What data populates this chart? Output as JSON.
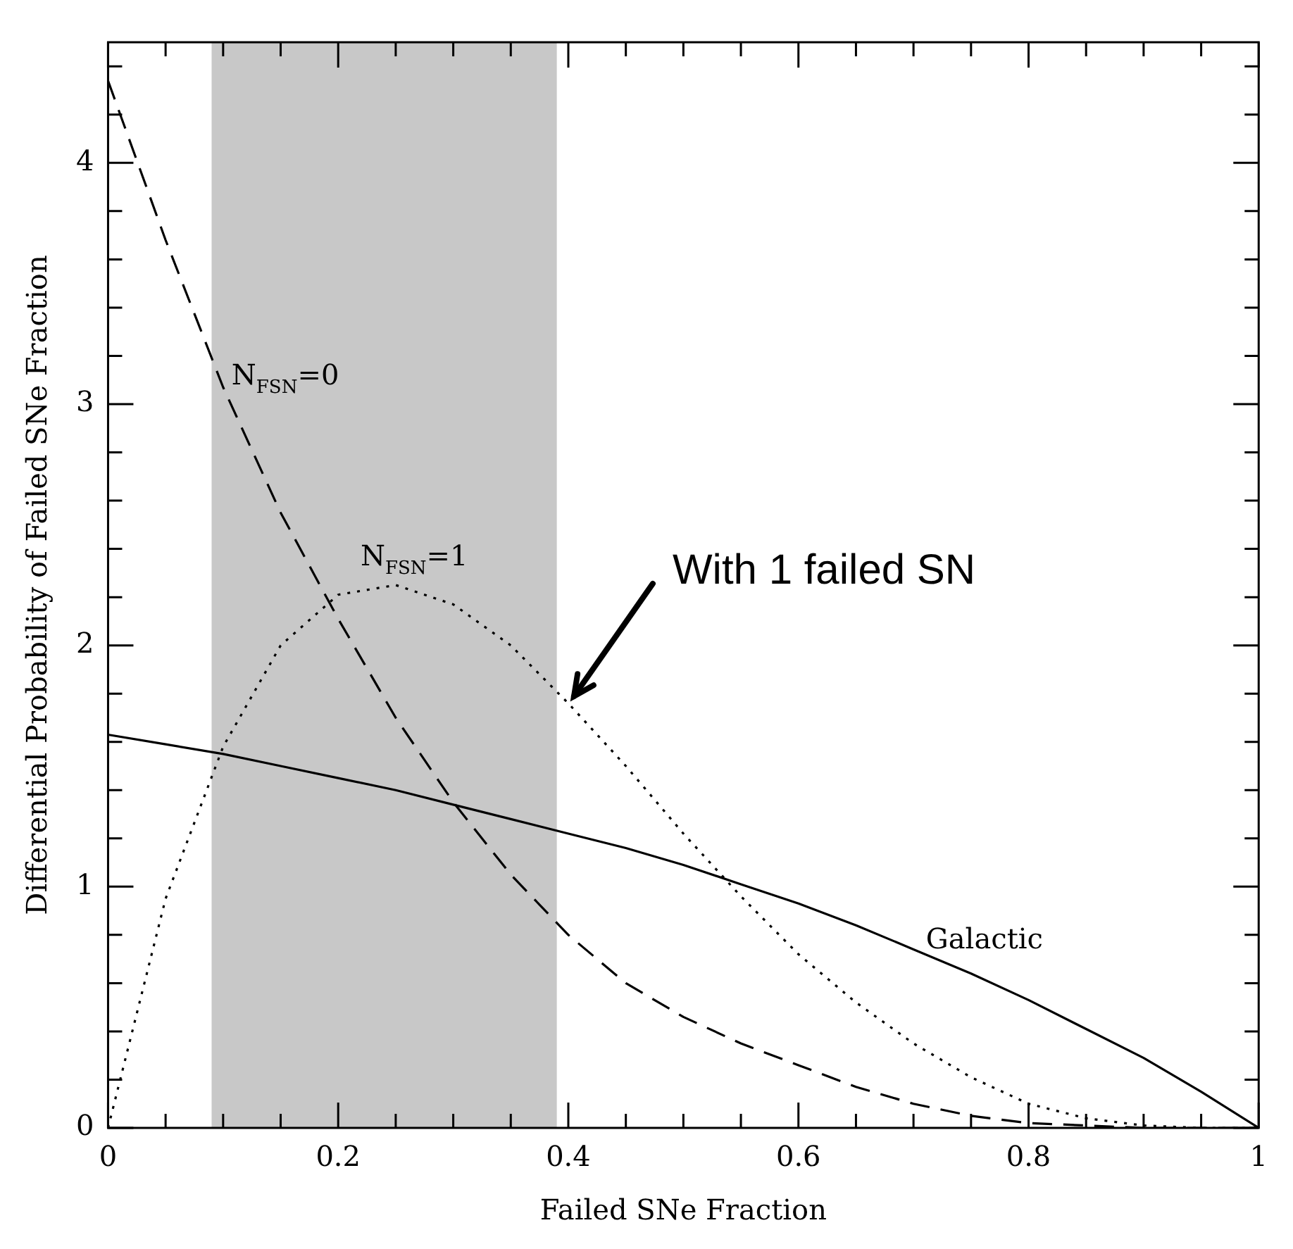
{
  "chart_data": {
    "type": "line",
    "xlabel": "Failed SNe Fraction",
    "ylabel": "Differential Probability of Failed SNe Fraction",
    "x": [
      0,
      0.05,
      0.1,
      0.15,
      0.2,
      0.25,
      0.3,
      0.35,
      0.4,
      0.45,
      0.5,
      0.55,
      0.6,
      0.65,
      0.7,
      0.75,
      0.8,
      0.85,
      0.9,
      0.95,
      1.0
    ],
    "series": [
      {
        "name": "N$_{FSN}$=0",
        "color": "#000000",
        "line_style": "dashed",
        "values": [
          4.34,
          3.68,
          3.07,
          2.55,
          2.11,
          1.7,
          1.35,
          1.05,
          0.8,
          0.6,
          0.46,
          0.35,
          0.26,
          0.17,
          0.1,
          0.05,
          0.02,
          0.01,
          0,
          0,
          0
        ]
      },
      {
        "name": "N$_{FSN}$=1",
        "color": "#000000",
        "line_style": "dotted",
        "values": [
          0,
          0.95,
          1.58,
          2.0,
          2.21,
          2.25,
          2.17,
          2.0,
          1.76,
          1.5,
          1.22,
          0.96,
          0.72,
          0.52,
          0.35,
          0.21,
          0.1,
          0.04,
          0.01,
          0,
          0
        ]
      },
      {
        "name": "Galactic",
        "color": "#000000",
        "line_style": "solid",
        "values": [
          1.63,
          1.59,
          1.55,
          1.5,
          1.45,
          1.4,
          1.34,
          1.28,
          1.22,
          1.16,
          1.09,
          1.01,
          0.93,
          0.84,
          0.74,
          0.64,
          0.53,
          0.41,
          0.29,
          0.15,
          0
        ]
      }
    ],
    "xlim": [
      0,
      1
    ],
    "ylim": [
      0,
      4.5
    ],
    "xticks": [
      0,
      {
        "value": 0.05,
        "label": null
      },
      {
        "value": 0.1,
        "label": null
      },
      {
        "value": 0.15,
        "label": null
      },
      0.2,
      {
        "value": 0.25,
        "label": null
      },
      {
        "value": 0.3,
        "label": null
      },
      {
        "value": 0.35,
        "label": null
      },
      0.4,
      {
        "value": 0.45,
        "label": null
      },
      {
        "value": 0.5,
        "label": null
      },
      {
        "value": 0.55,
        "label": null
      },
      0.6,
      {
        "value": 0.65,
        "label": null
      },
      {
        "value": 0.7,
        "label": null
      },
      {
        "value": 0.75,
        "label": null
      },
      0.8,
      {
        "value": 0.85,
        "label": null
      },
      {
        "value": 0.9,
        "label": null
      },
      {
        "value": 0.95,
        "label": null
      },
      1
    ],
    "yticks": [
      0,
      {
        "value": 0.2,
        "label": null
      },
      {
        "value": 0.4,
        "label": null
      },
      {
        "value": 0.6,
        "label": null
      },
      {
        "value": 0.8,
        "label": null
      },
      1,
      {
        "value": 1.2,
        "label": null
      },
      {
        "value": 1.4,
        "label": null
      },
      {
        "value": 1.6,
        "label": null
      },
      {
        "value": 1.8,
        "label": null
      },
      2,
      {
        "value": 2.2,
        "label": null
      },
      {
        "value": 2.4,
        "label": null
      },
      {
        "value": 2.6,
        "label": null
      },
      {
        "value": 2.8,
        "label": null
      },
      3,
      {
        "value": 3.2,
        "label": null
      },
      {
        "value": 3.4,
        "label": null
      },
      {
        "value": 3.6,
        "label": null
      },
      {
        "value": 3.8,
        "label": null
      },
      4,
      {
        "value": 4.2,
        "label": null
      },
      {
        "value": 4.4,
        "label": null
      }
    ],
    "bands": [
      {
        "axis": "x",
        "from": 0.09,
        "to": 0.39,
        "color": "#c8c8c8"
      }
    ],
    "annotations": [
      {
        "text": "With 1 failed SN",
        "x": 0.4,
        "y": 1.76
      }
    ],
    "marker": "none"
  }
}
